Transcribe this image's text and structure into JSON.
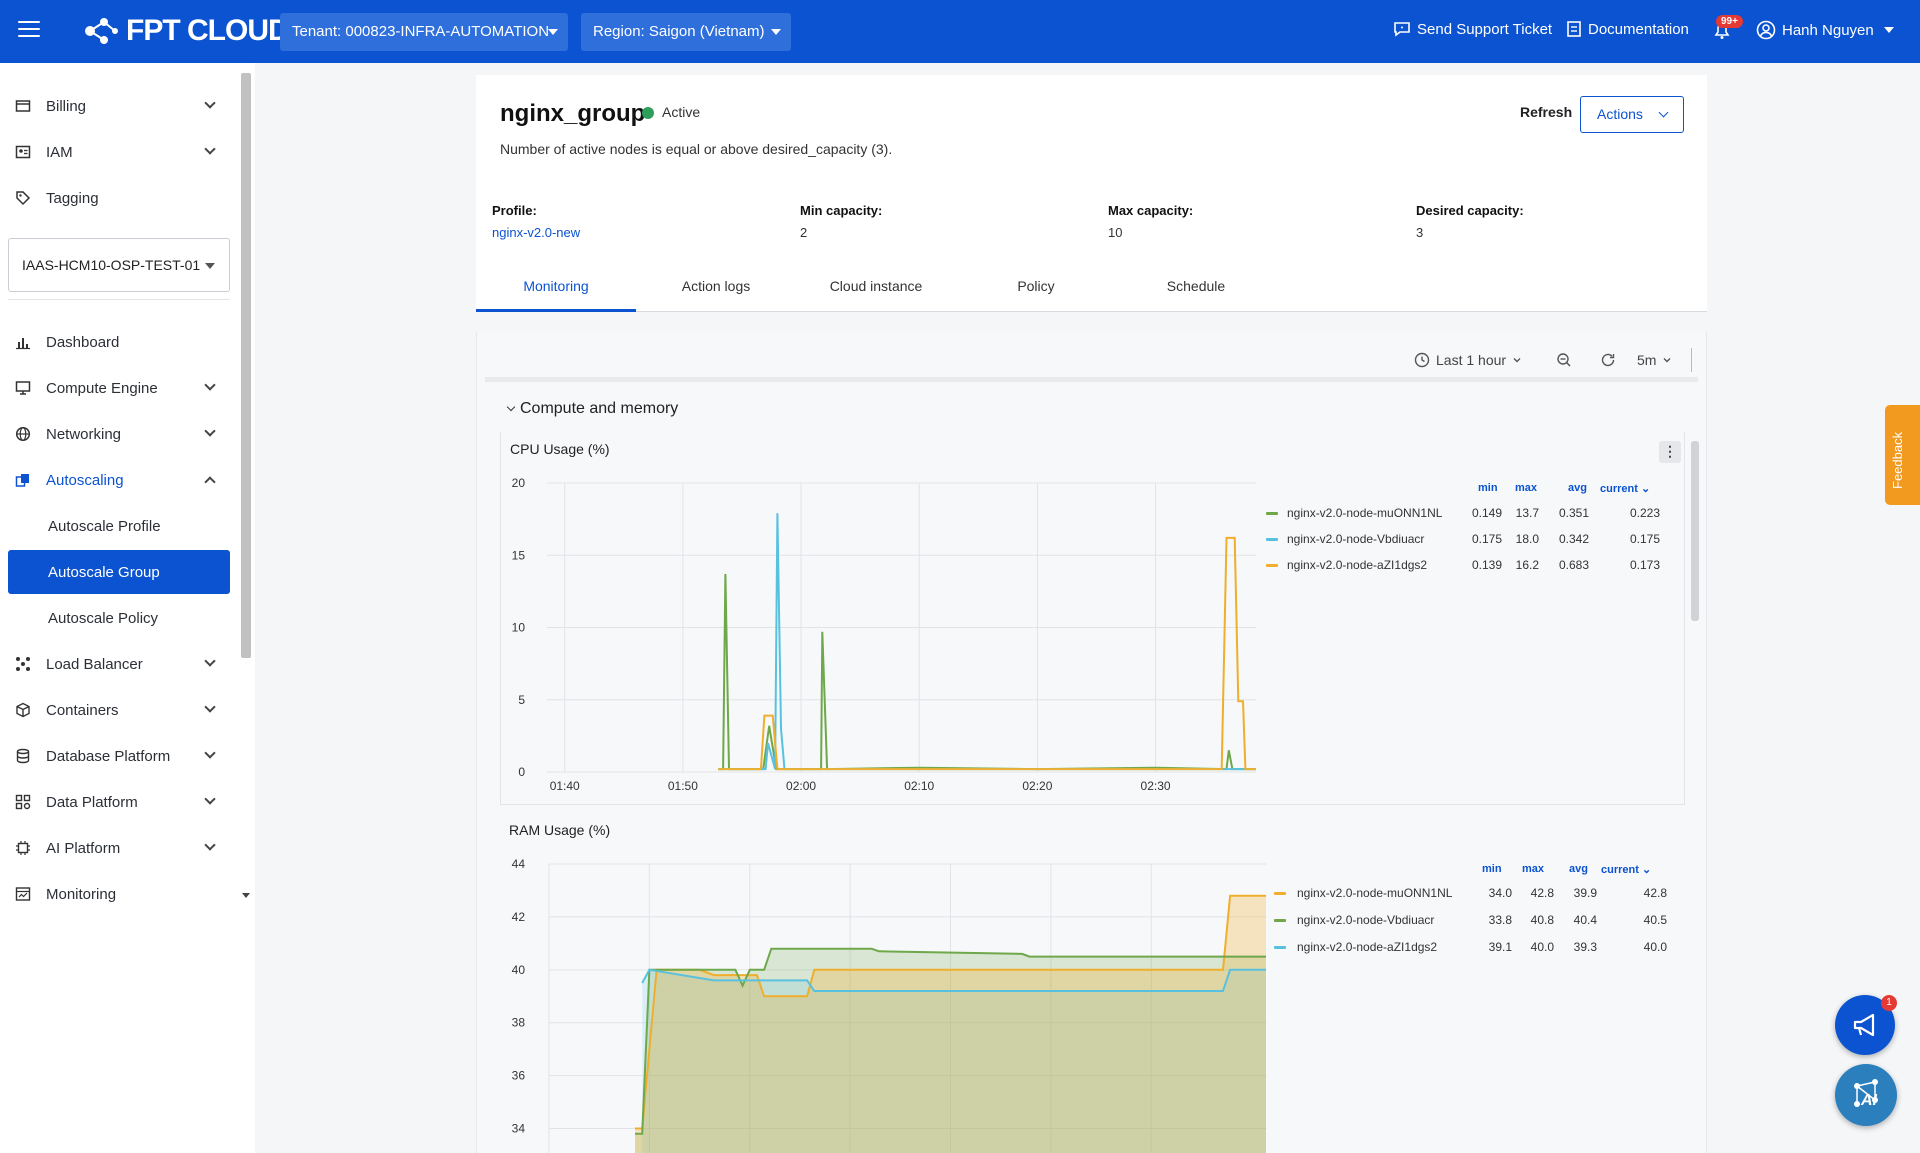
{
  "topbar": {
    "logo_text": "FPT CLOUD",
    "tenant": "Tenant: 000823-INFRA-AUTOMATION",
    "region": "Region: Saigon (Vietnam)",
    "support": "Send Support Ticket",
    "docs": "Documentation",
    "notif_count": "99+",
    "user": "Hanh Nguyen"
  },
  "sidebar": {
    "top_items": [
      {
        "label": "Billing",
        "icon": "billing-icon"
      },
      {
        "label": "IAM",
        "icon": "iam-icon"
      },
      {
        "label": "Tagging",
        "icon": "tag-icon"
      }
    ],
    "project": "IAAS-HCM10-OSP-TEST-01",
    "items": [
      {
        "label": "Dashboard",
        "icon": "chart-icon"
      },
      {
        "label": "Compute Engine",
        "icon": "monitor-icon"
      },
      {
        "label": "Networking",
        "icon": "globe-icon"
      },
      {
        "label": "Autoscaling",
        "icon": "autoscale-icon"
      },
      {
        "label": "Autoscale Profile"
      },
      {
        "label": "Autoscale Group"
      },
      {
        "label": "Autoscale Policy"
      },
      {
        "label": "Load Balancer",
        "icon": "loadbalancer-icon"
      },
      {
        "label": "Containers",
        "icon": "cube-icon"
      },
      {
        "label": "Database Platform",
        "icon": "database-icon"
      },
      {
        "label": "Data Platform",
        "icon": "data-icon"
      },
      {
        "label": "AI Platform",
        "icon": "chip-icon"
      },
      {
        "label": "Monitoring",
        "icon": "monitoring-icon"
      }
    ]
  },
  "group": {
    "name": "nginx_group",
    "status": "Active",
    "status_color": "#2e9e5b",
    "description": "Number of active nodes is equal or above desired_capacity (3).",
    "refresh": "Refresh",
    "actions": "Actions",
    "profile_label": "Profile:",
    "profile_value": "nginx-v2.0-new",
    "min_label": "Min capacity:",
    "min_value": "2",
    "max_label": "Max capacity:",
    "max_value": "10",
    "desired_label": "Desired capacity:",
    "desired_value": "3"
  },
  "tabs": [
    "Monitoring",
    "Action logs",
    "Cloud instance",
    "Policy",
    "Schedule"
  ],
  "toolbar": {
    "range": "Last 1 hour",
    "interval": "5m"
  },
  "section": "Compute and memory",
  "legend_headers": {
    "min": "min",
    "max": "max",
    "avg": "avg",
    "current": "current"
  },
  "feedback": "Feedback",
  "fab_count": "1",
  "fab_ai": "AI",
  "colors": {
    "green": "#6ea84a",
    "blue": "#58c1e0",
    "orange": "#f0ae2c",
    "brand": "#0b53d0"
  },
  "chart_data": [
    {
      "type": "line",
      "title": "CPU Usage (%)",
      "ylim": [
        0,
        20
      ],
      "yticks": [
        "20",
        "15",
        "10",
        "5",
        "0"
      ],
      "xticks": [
        "01:40",
        "01:50",
        "02:00",
        "02:10",
        "02:20",
        "02:30"
      ],
      "series": [
        {
          "name": "nginx-v2.0-node-muONN1NL",
          "color": "#6ea84a",
          "min": "0.149",
          "max": "13.7",
          "avg": "0.351",
          "current": "0.223",
          "points": [
            [
              53.0,
              0.2
            ],
            [
              53.4,
              0.2
            ],
            [
              53.6,
              13.7
            ],
            [
              53.9,
              0.2
            ],
            [
              56.8,
              0.2
            ],
            [
              57.3,
              3.2
            ],
            [
              57.9,
              0.2
            ],
            [
              58.6,
              0.2
            ],
            [
              59.1,
              0.2
            ],
            [
              61.7,
              0.2
            ],
            [
              61.8,
              9.7
            ],
            [
              62.2,
              0.2
            ],
            [
              70,
              0.3
            ],
            [
              80,
              0.2
            ],
            [
              90,
              0.3
            ],
            [
              96,
              0.2
            ],
            [
              96.2,
              1.5
            ],
            [
              96.5,
              0.2
            ],
            [
              98.5,
              0.2
            ]
          ]
        },
        {
          "name": "nginx-v2.0-node-Vbdiuacr",
          "color": "#58c1e0",
          "min": "0.175",
          "max": "18.0",
          "avg": "0.342",
          "current": "0.175",
          "points": [
            [
              53.0,
              0.2
            ],
            [
              57.0,
              0.2
            ],
            [
              57.2,
              2.0
            ],
            [
              57.8,
              0.2
            ],
            [
              58.0,
              17.9
            ],
            [
              58.3,
              3.0
            ],
            [
              58.6,
              0.2
            ],
            [
              61.0,
              0.2
            ],
            [
              70,
              0.2
            ],
            [
              80,
              0.2
            ],
            [
              90,
              0.2
            ],
            [
              96,
              0.2
            ],
            [
              98.5,
              0.2
            ]
          ]
        },
        {
          "name": "nginx-v2.0-node-aZI1dgs2",
          "color": "#f0ae2c",
          "min": "0.139",
          "max": "16.2",
          "avg": "0.683",
          "current": "0.173",
          "points": [
            [
              53.0,
              0.2
            ],
            [
              56.6,
              0.2
            ],
            [
              56.9,
              3.9
            ],
            [
              57.6,
              3.9
            ],
            [
              58.0,
              0.2
            ],
            [
              65,
              0.2
            ],
            [
              80,
              0.2
            ],
            [
              90,
              0.2
            ],
            [
              95.6,
              0.2
            ],
            [
              96.0,
              16.2
            ],
            [
              96.7,
              16.2
            ],
            [
              97.0,
              4.9
            ],
            [
              97.4,
              4.9
            ],
            [
              97.6,
              0.2
            ],
            [
              98.5,
              0.2
            ]
          ]
        }
      ]
    },
    {
      "type": "area",
      "title": "RAM Usage (%)",
      "ylim": [
        33,
        44
      ],
      "yticks": [
        "44",
        "42",
        "40",
        "38",
        "36",
        "34"
      ],
      "series": [
        {
          "name": "nginx-v2.0-node-muONN1NL",
          "color": "#f0ae2c",
          "min": "34.0",
          "max": "42.8",
          "avg": "39.9",
          "current": "42.8",
          "points": [
            [
              0.12,
              34.0
            ],
            [
              0.13,
              34.0
            ],
            [
              0.15,
              40.0
            ],
            [
              0.21,
              40.0
            ],
            [
              0.23,
              39.8
            ],
            [
              0.29,
              39.8
            ],
            [
              0.3,
              39.0
            ],
            [
              0.36,
              39.0
            ],
            [
              0.37,
              40.0
            ],
            [
              0.64,
              40.0
            ],
            [
              0.65,
              40.0
            ],
            [
              0.94,
              40.0
            ],
            [
              0.95,
              42.8
            ],
            [
              1.0,
              42.8
            ]
          ]
        },
        {
          "name": "nginx-v2.0-node-Vbdiuacr",
          "color": "#6ea84a",
          "min": "33.8",
          "max": "40.8",
          "avg": "40.4",
          "current": "40.5",
          "points": [
            [
              0.12,
              33.8
            ],
            [
              0.13,
              33.8
            ],
            [
              0.14,
              40.0
            ],
            [
              0.26,
              40.0
            ],
            [
              0.27,
              39.4
            ],
            [
              0.28,
              40.0
            ],
            [
              0.3,
              40.0
            ],
            [
              0.31,
              40.8
            ],
            [
              0.45,
              40.8
            ],
            [
              0.46,
              40.7
            ],
            [
              0.66,
              40.6
            ],
            [
              0.67,
              40.5
            ],
            [
              1.0,
              40.5
            ]
          ]
        },
        {
          "name": "nginx-v2.0-node-aZI1dgs2",
          "color": "#58c1e0",
          "min": "39.1",
          "max": "40.0",
          "avg": "39.3",
          "current": "40.0",
          "points": [
            [
              0.13,
              39.5
            ],
            [
              0.14,
              40.0
            ],
            [
              0.23,
              39.6
            ],
            [
              0.36,
              39.6
            ],
            [
              0.37,
              39.2
            ],
            [
              0.64,
              39.2
            ],
            [
              0.65,
              39.2
            ],
            [
              0.94,
              39.2
            ],
            [
              0.95,
              40.0
            ],
            [
              1.0,
              40.0
            ]
          ]
        }
      ]
    }
  ]
}
